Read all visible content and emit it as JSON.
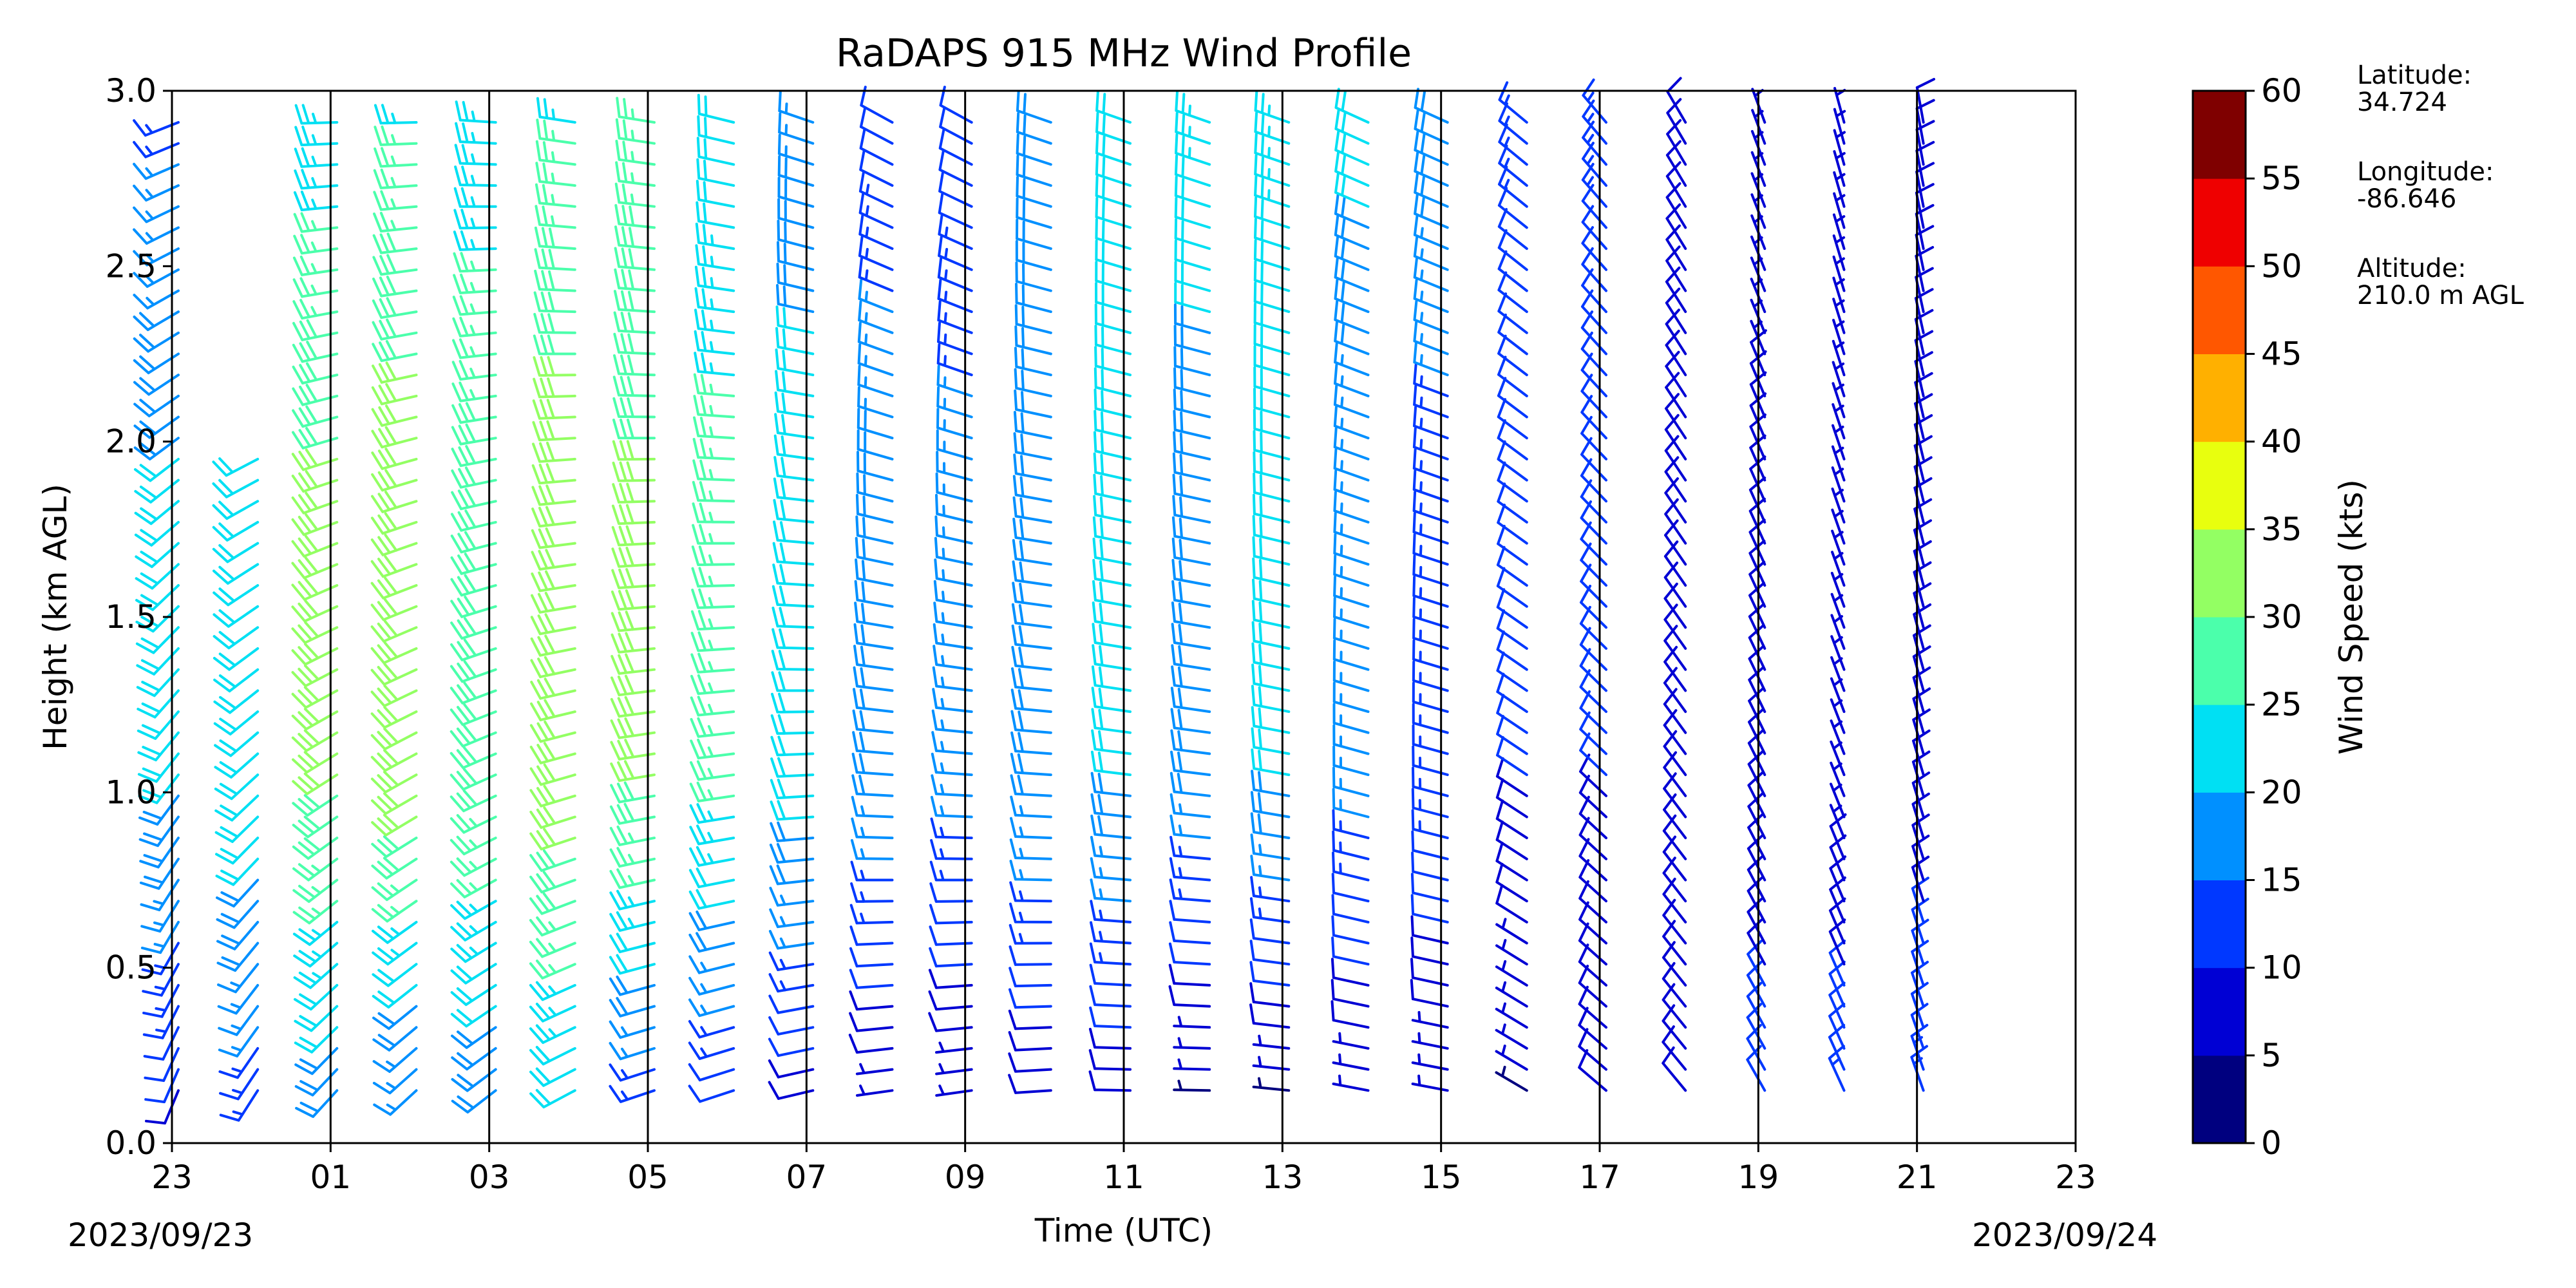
{
  "chart_data": {
    "type": "wind_barb_profile",
    "title": "RaDAPS 915 MHz Wind Profile",
    "xlabel": "Time (UTC)",
    "ylabel": "Height (km AGL)",
    "ylim": [
      0.0,
      3.0
    ],
    "yticks": [
      "0.0",
      "0.5",
      "1.0",
      "1.5",
      "2.0",
      "2.5",
      "3.0"
    ],
    "xticks": [
      "23",
      "01",
      "03",
      "05",
      "07",
      "09",
      "11",
      "13",
      "15",
      "17",
      "19",
      "21",
      "23"
    ],
    "start_date": "2023/09/23",
    "end_date": "2023/09/24",
    "colorbar": {
      "label": "Wind Speed (kts)",
      "ticks": [
        "0",
        "5",
        "10",
        "15",
        "20",
        "25",
        "30",
        "35",
        "40",
        "45",
        "50",
        "55",
        "60"
      ],
      "colors": [
        "#00007f",
        "#0000d4",
        "#0038ff",
        "#0090ff",
        "#00e0f3",
        "#4bffab",
        "#93ff63",
        "#e8ff0e",
        "#ffb000",
        "#ff5700",
        "#ef0000",
        "#7f0000"
      ]
    },
    "station": {
      "latitude_label": "Latitude:",
      "latitude": "34.724",
      "longitude_label": "Longitude:",
      "longitude": "-86.646",
      "altitude_label": "Altitude:",
      "altitude": "210.0 m AGL"
    },
    "profiles": [
      {
        "time_hr": 0.0,
        "speed_low": 8,
        "speed_mid": 20,
        "speed_high": 14,
        "dir_low": 200,
        "dir_high": 250,
        "top_km": 3.0
      },
      {
        "time_hr": 1.0,
        "speed_low": 12,
        "speed_mid": 22,
        "speed_high": 12,
        "dir_low": 210,
        "dir_high": 260,
        "top_km": 2.0
      },
      {
        "time_hr": 2.0,
        "speed_low": 16,
        "speed_mid": 30,
        "speed_high": 22,
        "dir_low": 220,
        "dir_high": 270,
        "top_km": 3.0
      },
      {
        "time_hr": 3.0,
        "speed_low": 12,
        "speed_mid": 32,
        "speed_high": 24,
        "dir_low": 225,
        "dir_high": 270,
        "top_km": 3.0
      },
      {
        "time_hr": 4.0,
        "speed_low": 16,
        "speed_mid": 28,
        "speed_high": 22,
        "dir_low": 230,
        "dir_high": 275,
        "top_km": 3.0
      },
      {
        "time_hr": 5.0,
        "speed_low": 18,
        "speed_mid": 32,
        "speed_high": 24,
        "dir_low": 240,
        "dir_high": 280,
        "top_km": 3.0
      },
      {
        "time_hr": 6.0,
        "speed_low": 10,
        "speed_mid": 30,
        "speed_high": 26,
        "dir_low": 250,
        "dir_high": 280,
        "top_km": 3.0
      },
      {
        "time_hr": 7.0,
        "speed_low": 8,
        "speed_mid": 26,
        "speed_high": 20,
        "dir_low": 250,
        "dir_high": 285,
        "top_km": 3.0
      },
      {
        "time_hr": 8.0,
        "speed_low": 6,
        "speed_mid": 22,
        "speed_high": 16,
        "dir_low": 255,
        "dir_high": 290,
        "top_km": 3.0
      },
      {
        "time_hr": 9.0,
        "speed_low": 4,
        "speed_mid": 18,
        "speed_high": 10,
        "dir_low": 260,
        "dir_high": 300,
        "top_km": 3.0
      },
      {
        "time_hr": 10.0,
        "speed_low": 4,
        "speed_mid": 16,
        "speed_high": 10,
        "dir_low": 260,
        "dir_high": 300,
        "top_km": 3.0
      },
      {
        "time_hr": 11.0,
        "speed_low": 6,
        "speed_mid": 18,
        "speed_high": 20,
        "dir_low": 265,
        "dir_high": 290,
        "top_km": 3.0
      },
      {
        "time_hr": 12.0,
        "speed_low": 6,
        "speed_mid": 20,
        "speed_high": 22,
        "dir_low": 270,
        "dir_high": 290,
        "top_km": 3.0
      },
      {
        "time_hr": 13.0,
        "speed_low": 2,
        "speed_mid": 18,
        "speed_high": 24,
        "dir_low": 270,
        "dir_high": 290,
        "top_km": 3.0
      },
      {
        "time_hr": 14.0,
        "speed_low": 2,
        "speed_mid": 20,
        "speed_high": 24,
        "dir_low": 275,
        "dir_high": 290,
        "top_km": 3.0
      },
      {
        "time_hr": 15.0,
        "speed_low": 4,
        "speed_mid": 16,
        "speed_high": 22,
        "dir_low": 280,
        "dir_high": 295,
        "top_km": 3.0
      },
      {
        "time_hr": 16.0,
        "speed_low": 4,
        "speed_mid": 14,
        "speed_high": 20,
        "dir_low": 280,
        "dir_high": 295,
        "top_km": 3.0
      },
      {
        "time_hr": 17.0,
        "speed_low": 4,
        "speed_mid": 10,
        "speed_high": 14,
        "dir_low": 300,
        "dir_high": 310,
        "top_km": 3.0
      },
      {
        "time_hr": 18.0,
        "speed_low": 8,
        "speed_mid": 10,
        "speed_high": 14,
        "dir_low": 310,
        "dir_high": 320,
        "top_km": 3.0
      },
      {
        "time_hr": 19.0,
        "speed_low": 10,
        "speed_mid": 8,
        "speed_high": 8,
        "dir_low": 320,
        "dir_high": 330,
        "top_km": 3.0
      },
      {
        "time_hr": 20.0,
        "speed_low": 12,
        "speed_mid": 8,
        "speed_high": 6,
        "dir_low": 330,
        "dir_high": 340,
        "top_km": 3.0
      },
      {
        "time_hr": 21.0,
        "speed_low": 14,
        "speed_mid": 6,
        "speed_high": 6,
        "dir_low": 335,
        "dir_high": 345,
        "top_km": 3.0
      },
      {
        "time_hr": 22.0,
        "speed_low": 14,
        "speed_mid": 8,
        "speed_high": 10,
        "dir_low": 340,
        "dir_high": 350,
        "top_km": 3.0
      }
    ]
  }
}
